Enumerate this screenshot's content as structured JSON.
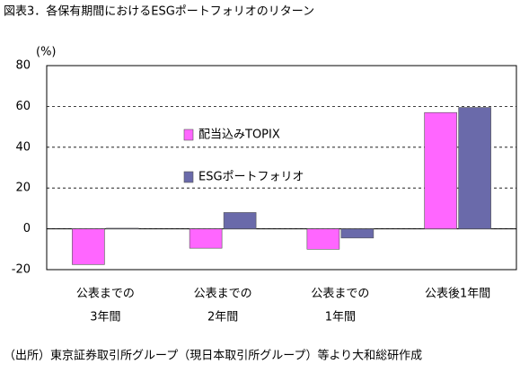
{
  "chart_data": {
    "type": "bar",
    "title": "図表3．各保有期間におけるESGポートフォリオのリターン",
    "y_unit": "(%)",
    "categories": [
      [
        "公表までの",
        "3年間"
      ],
      [
        "公表までの",
        "2年間"
      ],
      [
        "公表までの",
        "1年間"
      ],
      [
        "公表後1年間"
      ]
    ],
    "series": [
      {
        "name": "配当込みTOPIX",
        "color": "#ff66ff",
        "values": [
          -17.5,
          -9.5,
          -10,
          57
        ]
      },
      {
        "name": "ESGポートフォリオ",
        "color": "#6a6aaa",
        "values": [
          0.3,
          8,
          -4.5,
          59.5
        ]
      }
    ],
    "ylim": [
      -20,
      80
    ],
    "yticks": [
      -20,
      0,
      20,
      40,
      60,
      80
    ],
    "grid": true,
    "source": "（出所）東京証券取引所グループ（現日本取引所グループ）等より大和総研作成"
  }
}
